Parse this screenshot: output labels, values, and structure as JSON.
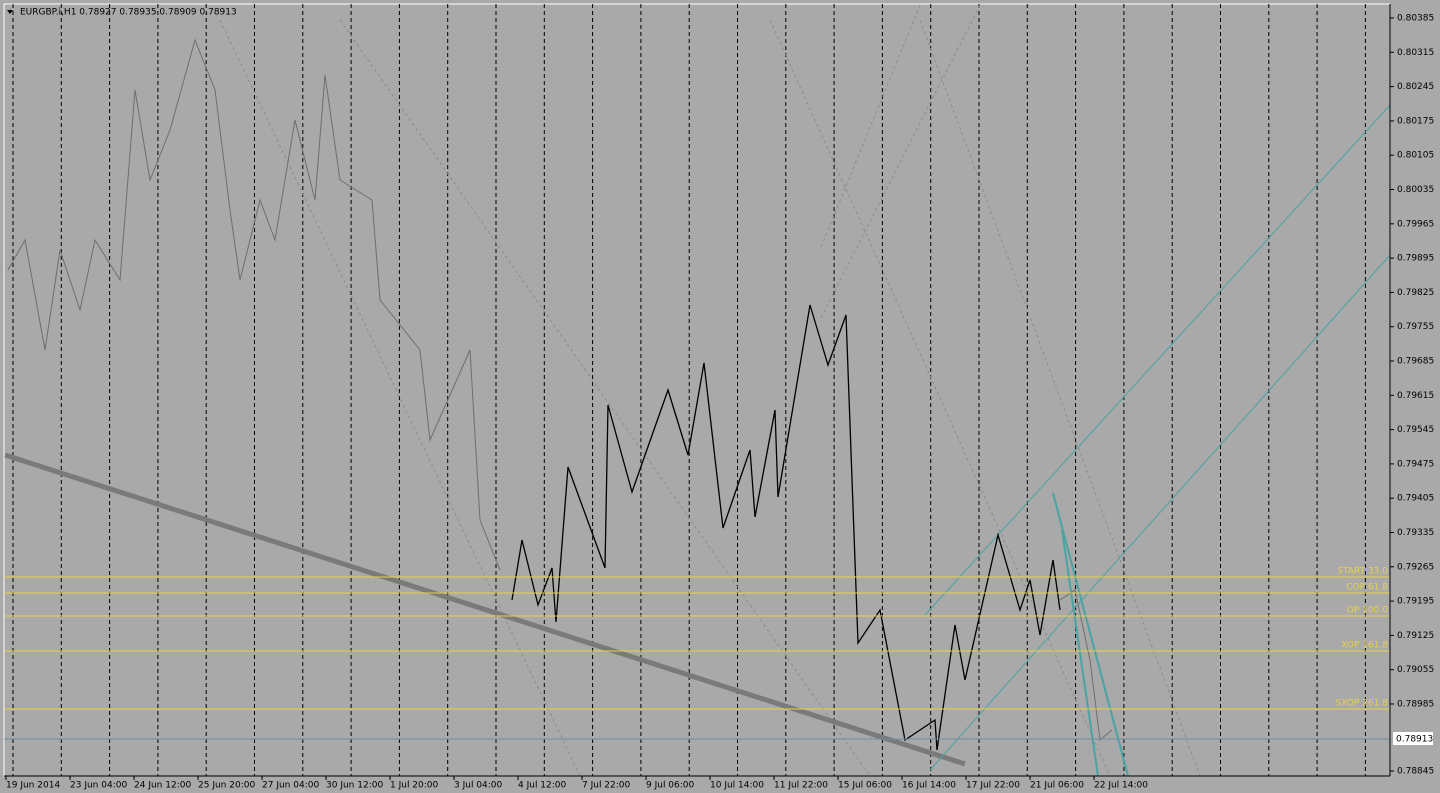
{
  "header": {
    "title": "EURGBP.i,H1  0.78927 0.78935 0.78909 0.78913"
  },
  "price_axis": [
    "0.80385",
    "0.80315",
    "0.80245",
    "0.80175",
    "0.80105",
    "0.80035",
    "0.79965",
    "0.79895",
    "0.79825",
    "0.79755",
    "0.79685",
    "0.79615",
    "0.79545",
    "0.79475",
    "0.79405",
    "0.79335",
    "0.79265",
    "0.79195",
    "0.79125",
    "0.79055",
    "0.78985",
    "0.78845"
  ],
  "current_price": "0.78913",
  "time_axis": [
    "19 Jun 2014",
    "23 Jun 04:00",
    "24 Jun 12:00",
    "25 Jun 20:00",
    "27 Jun 04:00",
    "30 Jun 12:00",
    "1 Jul 20:00",
    "3 Jul 04:00",
    "4 Jul 12:00",
    "7 Jul 22:00",
    "9 Jul 06:00",
    "10 Jul 14:00",
    "11 Jul 22:00",
    "15 Jul 06:00",
    "16 Jul 14:00",
    "17 Jul 22:00",
    "21 Jul 06:00",
    "22 Jul 14:00"
  ],
  "levels": [
    "START 33.0",
    "COP 61.8",
    "OP 100.0",
    "XOP 161.8",
    "SXOP 261.8"
  ]
}
